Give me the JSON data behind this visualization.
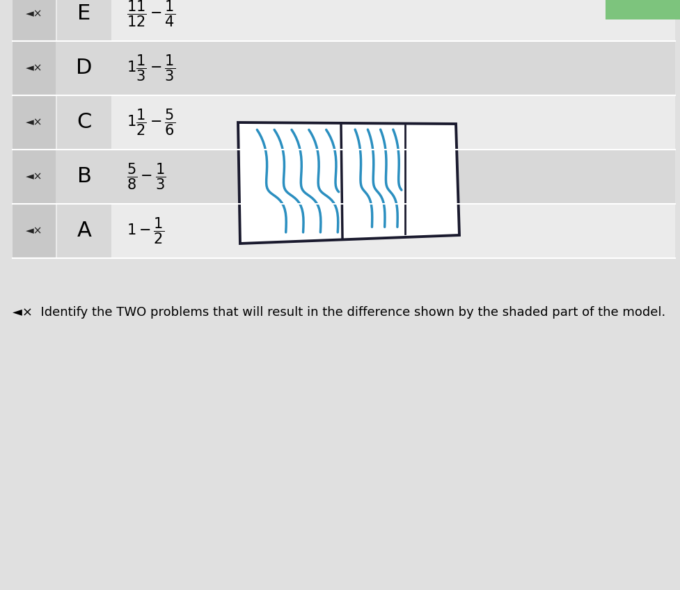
{
  "bg_color": "#e0e0e0",
  "title_text": "◄×  Identify the TWO problems that will result in the difference shown by the shaded part of the model.",
  "title_fontsize": 13.0,
  "options": [
    {
      "label": "A",
      "latex": "$1 - \\dfrac{1}{2}$"
    },
    {
      "label": "B",
      "latex": "$\\dfrac{5}{8} - \\dfrac{1}{3}$"
    },
    {
      "label": "C",
      "latex": "$1\\dfrac{1}{2} - \\dfrac{5}{6}$"
    },
    {
      "label": "D",
      "latex": "$1\\dfrac{1}{3} - \\dfrac{1}{3}$"
    },
    {
      "label": "E",
      "latex": "$\\dfrac{11}{12} - \\dfrac{1}{4}$"
    }
  ],
  "row_bg_light": "#ebebeb",
  "row_bg_dark": "#d8d8d8",
  "icon_col_bg": "#c8c8c8",
  "label_col_bg": "#d8d8d8",
  "green_box_color": "#7dc47d",
  "scribble_color": "#2b8fc0"
}
